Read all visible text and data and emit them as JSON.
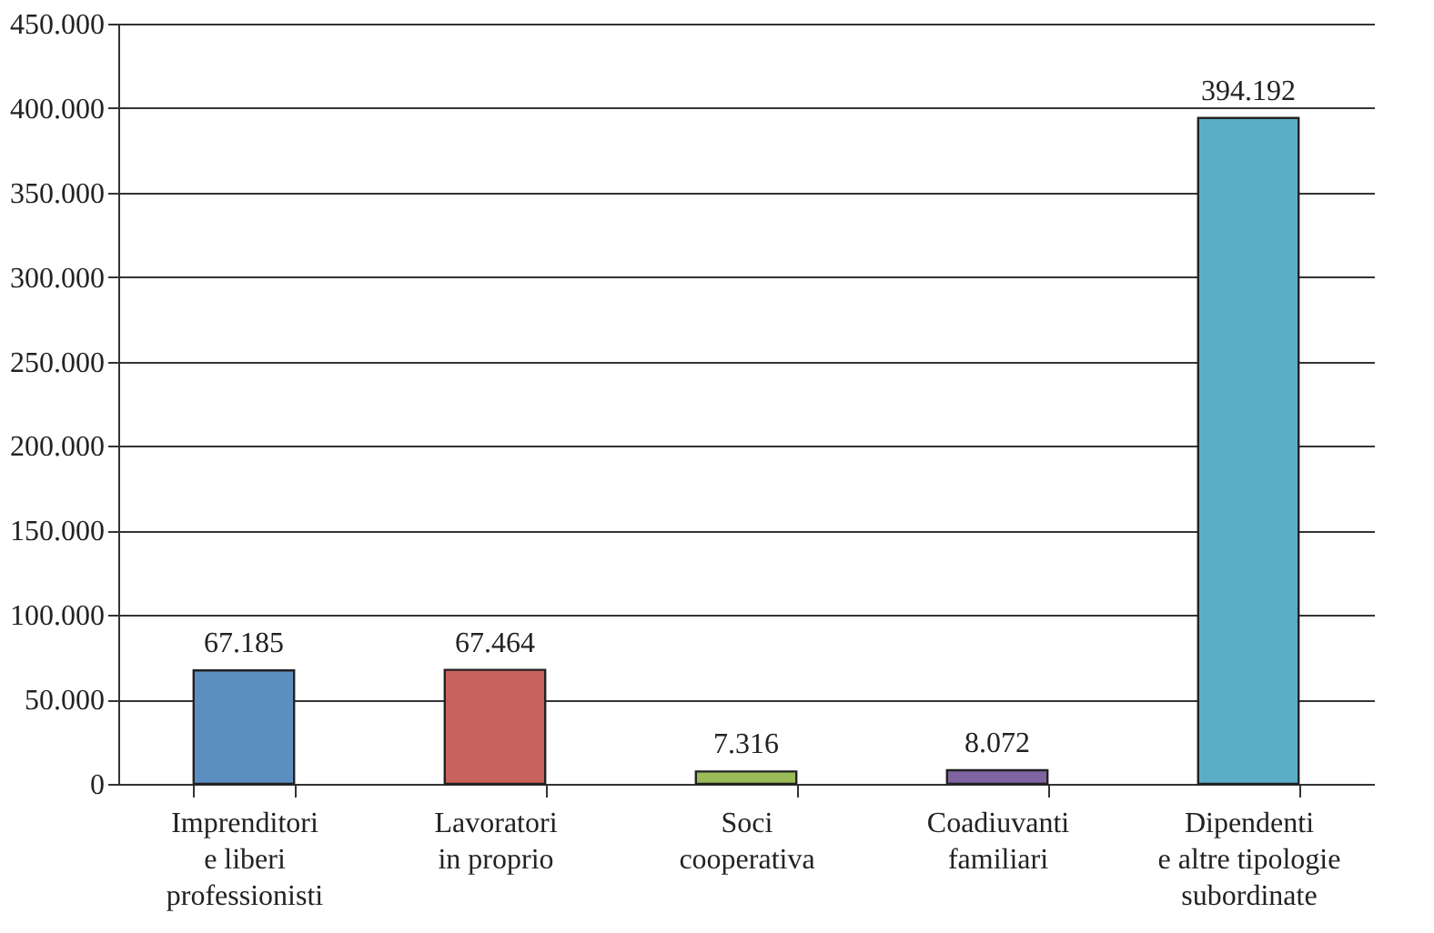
{
  "chart_data": {
    "type": "bar",
    "categories": [
      "Imprenditori\ne liberi\nprofessionisti",
      "Lavoratori\nin proprio",
      "Soci\ncooperativa",
      "Coadiuvanti\nfamiliari",
      "Dipendenti\ne altre tipologie\nsubordinate"
    ],
    "values": [
      67185,
      67464,
      7316,
      8072,
      394192
    ],
    "colors": [
      "#5b8fc2",
      "#c8625c",
      "#9bbb59",
      "#8064a2",
      "#5aafc7"
    ],
    "value_labels": [
      "67.185",
      "67.464",
      "7.316",
      "8.072",
      "394.192"
    ],
    "ylim": [
      0,
      450000
    ],
    "yticks": [
      {
        "value": 0,
        "label": "0"
      },
      {
        "value": 50000,
        "label": "50.000"
      },
      {
        "value": 100000,
        "label": "100.000"
      },
      {
        "value": 150000,
        "label": "150.000"
      },
      {
        "value": 200000,
        "label": "200.000"
      },
      {
        "value": 250000,
        "label": "250.000"
      },
      {
        "value": 300000,
        "label": "300.000"
      },
      {
        "value": 350000,
        "label": "350.000"
      },
      {
        "value": 400000,
        "label": "400.000"
      },
      {
        "value": 450000,
        "label": "450.000"
      }
    ],
    "grid": "y"
  }
}
